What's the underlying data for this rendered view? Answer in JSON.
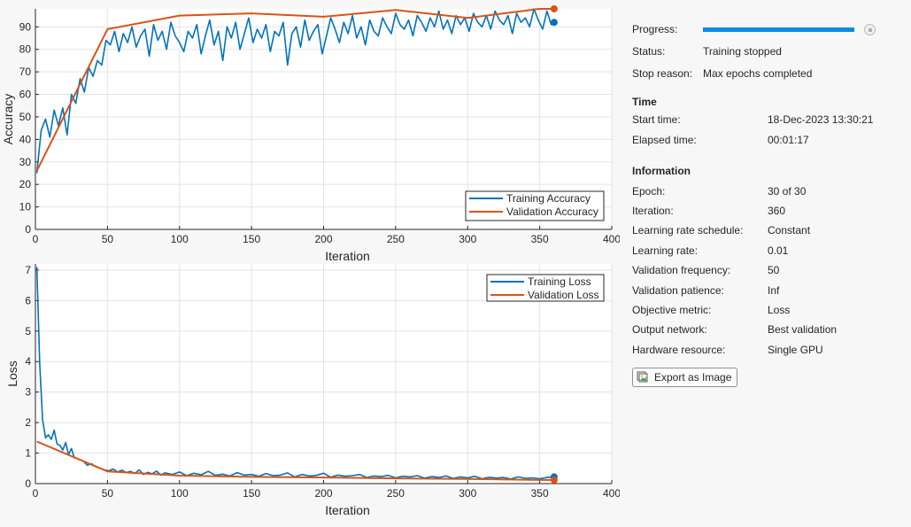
{
  "chart_data": [
    {
      "type": "line",
      "xlabel": "Iteration",
      "ylabel": "Accuracy",
      "xlim": [
        0,
        400
      ],
      "ylim": [
        0,
        98
      ],
      "xticks": [
        0,
        50,
        100,
        150,
        200,
        250,
        300,
        350,
        400
      ],
      "yticks": [
        0,
        10,
        20,
        30,
        40,
        50,
        60,
        70,
        80,
        90
      ],
      "grid": true,
      "legend_position": "bottom-right",
      "series": [
        {
          "name": "Training Accuracy",
          "color": "#0072bd",
          "x": [
            1,
            4,
            7,
            10,
            13,
            16,
            19,
            22,
            25,
            28,
            31,
            34,
            37,
            40,
            43,
            46,
            49,
            52,
            55,
            58,
            61,
            64,
            67,
            70,
            73,
            76,
            79,
            82,
            85,
            88,
            91,
            94,
            97,
            100,
            103,
            106,
            109,
            112,
            115,
            118,
            121,
            124,
            127,
            130,
            133,
            136,
            139,
            142,
            145,
            148,
            151,
            154,
            157,
            160,
            163,
            166,
            169,
            172,
            175,
            178,
            181,
            184,
            187,
            190,
            193,
            196,
            199,
            202,
            205,
            208,
            211,
            214,
            217,
            220,
            223,
            226,
            229,
            232,
            235,
            238,
            241,
            244,
            247,
            250,
            253,
            256,
            259,
            262,
            265,
            268,
            271,
            274,
            277,
            280,
            283,
            286,
            289,
            292,
            295,
            298,
            301,
            304,
            307,
            310,
            313,
            316,
            319,
            322,
            325,
            328,
            331,
            334,
            337,
            340,
            343,
            346,
            349,
            352,
            355,
            358,
            360
          ],
          "y": [
            25,
            44,
            49,
            41,
            53,
            46,
            54,
            42,
            60,
            56,
            67,
            61,
            72,
            68,
            75,
            73,
            84,
            82,
            88,
            79,
            87,
            83,
            90,
            81,
            86,
            89,
            77,
            91,
            84,
            88,
            80,
            92,
            86,
            83,
            79,
            88,
            85,
            91,
            78,
            86,
            93,
            82,
            88,
            75,
            90,
            85,
            92,
            80,
            87,
            94,
            83,
            89,
            85,
            91,
            79,
            88,
            86,
            92,
            73,
            87,
            90,
            81,
            93,
            84,
            88,
            91,
            78,
            86,
            94,
            89,
            83,
            92,
            87,
            95,
            85,
            90,
            82,
            93,
            88,
            86,
            94,
            90,
            87,
            96,
            91,
            89,
            93,
            86,
            95,
            92,
            88,
            94,
            90,
            97,
            89,
            93,
            87,
            95,
            91,
            94,
            88,
            96,
            92,
            90,
            95,
            89,
            97,
            93,
            91,
            95,
            87,
            96,
            92,
            94,
            90,
            98,
            93,
            89,
            97,
            91,
            92
          ]
        },
        {
          "name": "Validation Accuracy",
          "color": "#d95319",
          "x": [
            1,
            50,
            100,
            150,
            200,
            250,
            300,
            350,
            360
          ],
          "y": [
            26,
            89,
            95,
            96,
            94.5,
            97.5,
            94,
            98,
            98
          ]
        }
      ],
      "final_markers": [
        {
          "series": "Training Accuracy",
          "x": 360,
          "y": 92
        },
        {
          "series": "Validation Accuracy",
          "x": 360,
          "y": 98
        }
      ]
    },
    {
      "type": "line",
      "xlabel": "Iteration",
      "ylabel": "Loss",
      "xlim": [
        0,
        400
      ],
      "ylim": [
        0,
        7.2
      ],
      "xticks": [
        0,
        50,
        100,
        150,
        200,
        250,
        300,
        350,
        400
      ],
      "yticks": [
        0,
        1,
        2,
        3,
        4,
        5,
        6,
        7
      ],
      "grid": true,
      "legend_position": "top-right",
      "series": [
        {
          "name": "Training Loss",
          "color": "#0072bd",
          "x": [
            1,
            3,
            5,
            7,
            9,
            11,
            13,
            15,
            17,
            19,
            21,
            23,
            25,
            27,
            30,
            33,
            36,
            39,
            42,
            45,
            48,
            51,
            54,
            57,
            60,
            63,
            66,
            69,
            72,
            75,
            78,
            81,
            84,
            87,
            90,
            95,
            100,
            105,
            110,
            115,
            120,
            125,
            130,
            135,
            140,
            145,
            150,
            155,
            160,
            165,
            170,
            175,
            180,
            185,
            190,
            195,
            200,
            205,
            210,
            215,
            220,
            225,
            230,
            235,
            240,
            245,
            250,
            255,
            260,
            265,
            270,
            275,
            280,
            285,
            290,
            295,
            300,
            305,
            310,
            315,
            320,
            325,
            330,
            335,
            340,
            345,
            350,
            355,
            360
          ],
          "y": [
            7.1,
            3.9,
            2.1,
            1.5,
            1.6,
            1.45,
            1.75,
            1.3,
            1.25,
            1.1,
            1.35,
            0.95,
            1.15,
            0.85,
            0.8,
            0.75,
            0.6,
            0.65,
            0.55,
            0.5,
            0.45,
            0.42,
            0.48,
            0.38,
            0.44,
            0.36,
            0.4,
            0.33,
            0.45,
            0.3,
            0.37,
            0.32,
            0.41,
            0.28,
            0.35,
            0.3,
            0.38,
            0.26,
            0.34,
            0.29,
            0.4,
            0.27,
            0.31,
            0.25,
            0.36,
            0.28,
            0.3,
            0.24,
            0.33,
            0.26,
            0.28,
            0.35,
            0.22,
            0.3,
            0.25,
            0.27,
            0.34,
            0.21,
            0.28,
            0.24,
            0.26,
            0.3,
            0.2,
            0.25,
            0.23,
            0.27,
            0.19,
            0.24,
            0.22,
            0.26,
            0.18,
            0.23,
            0.2,
            0.25,
            0.17,
            0.22,
            0.19,
            0.24,
            0.16,
            0.21,
            0.18,
            0.2,
            0.15,
            0.22,
            0.17,
            0.19,
            0.16,
            0.2,
            0.22
          ]
        },
        {
          "name": "Validation Loss",
          "color": "#d95319",
          "x": [
            1,
            50,
            100,
            150,
            200,
            250,
            300,
            350,
            360
          ],
          "y": [
            1.38,
            0.4,
            0.26,
            0.22,
            0.2,
            0.17,
            0.15,
            0.12,
            0.12
          ]
        }
      ],
      "final_markers": [
        {
          "series": "Training Loss",
          "x": 360,
          "y": 0.22
        },
        {
          "series": "Validation Loss",
          "x": 360,
          "y": 0.12
        }
      ]
    }
  ],
  "panel": {
    "progress_label": "Progress:",
    "progress_value": 1.0,
    "status_label": "Status:",
    "status_value": "Training stopped",
    "stop_reason_label": "Stop reason:",
    "stop_reason_value": "Max epochs completed",
    "time_heading": "Time",
    "start_time_label": "Start time:",
    "start_time_value": "18-Dec-2023 13:30:21",
    "elapsed_label": "Elapsed time:",
    "elapsed_value": "00:01:17",
    "info_heading": "Information",
    "info": [
      {
        "label": "Epoch:",
        "value": "30 of 30"
      },
      {
        "label": "Iteration:",
        "value": "360"
      },
      {
        "label": "Learning rate schedule:",
        "value": "Constant"
      },
      {
        "label": "Learning rate:",
        "value": "0.01"
      },
      {
        "label": "Validation frequency:",
        "value": "50"
      },
      {
        "label": "Validation patience:",
        "value": "Inf"
      },
      {
        "label": "Objective metric:",
        "value": "Loss"
      },
      {
        "label": "Output network:",
        "value": "Best validation"
      },
      {
        "label": "Hardware resource:",
        "value": "Single GPU"
      }
    ],
    "export_label": "Export as Image",
    "export_icon": "export-image-icon",
    "stop_icon": "stop-icon"
  }
}
